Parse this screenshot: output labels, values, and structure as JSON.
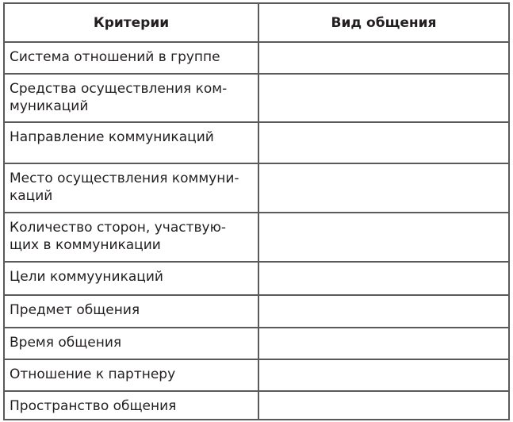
{
  "table": {
    "headers": [
      "Критерии",
      "Вид общения"
    ],
    "rows": [
      {
        "criterion": "Система отношений в группе",
        "value": ""
      },
      {
        "criterion": "Средства осуществления ком-\nмуникаций",
        "value": ""
      },
      {
        "criterion": "Направление коммуникаций",
        "value": ""
      },
      {
        "criterion": "Место осуществления коммуни-\nкаций",
        "value": ""
      },
      {
        "criterion": "Количество сторон, участвую-\nщих в коммуникации",
        "value": ""
      },
      {
        "criterion": "Цели коммууникаций",
        "value": ""
      },
      {
        "criterion": "Предмет общения",
        "value": ""
      },
      {
        "criterion": "Время общения",
        "value": ""
      },
      {
        "criterion": "Отношение к партнеру",
        "value": ""
      },
      {
        "criterion": "Пространство общения",
        "value": ""
      }
    ]
  }
}
